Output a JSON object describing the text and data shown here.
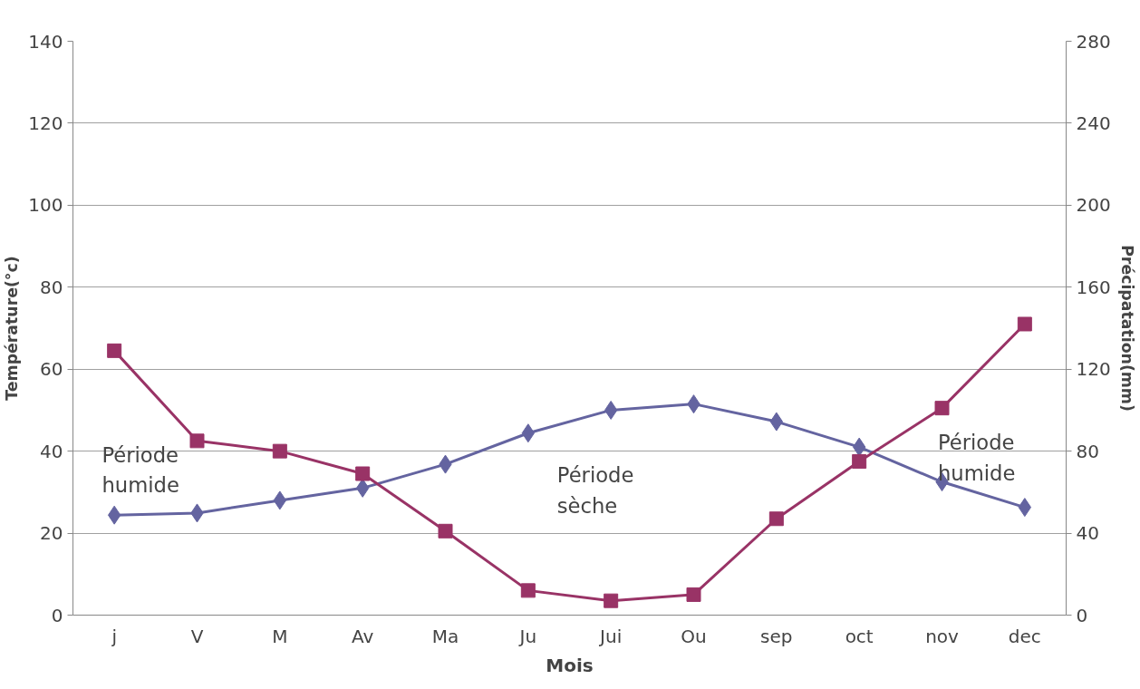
{
  "chart_data": {
    "type": "line",
    "xlabel": "Mois",
    "ylabel": "Température(°c)",
    "y2label": "Précipatation(mm)",
    "categories": [
      "j",
      "V",
      "M",
      "Av",
      "Ma",
      "Ju",
      "Jui",
      "Ou",
      "sep",
      "oct",
      "nov",
      "dec"
    ],
    "series": [
      {
        "name": null,
        "color": "#6464a0",
        "marker": "diamond",
        "values": [
          24.4,
          24.9,
          28,
          31,
          36.8,
          44.4,
          50,
          51.5,
          47.2,
          41,
          32.5,
          26.3
        ]
      },
      {
        "name": null,
        "color": "#993366",
        "marker": "square",
        "axis": "y2",
        "values": [
          129,
          85,
          80,
          69,
          41,
          12,
          7,
          10,
          47,
          75,
          101,
          142
        ]
      }
    ],
    "ylim": [
      0,
      140
    ],
    "yticks": [
      0,
      20,
      40,
      60,
      80,
      100,
      120,
      140
    ],
    "y2lim": [
      0,
      280
    ],
    "y2ticks": [
      0,
      40,
      80,
      120,
      160,
      200,
      240,
      280
    ],
    "grid": "y",
    "annotations": [
      "Période\nhumide",
      "Période\nsèche",
      "Période\nhumide"
    ]
  }
}
